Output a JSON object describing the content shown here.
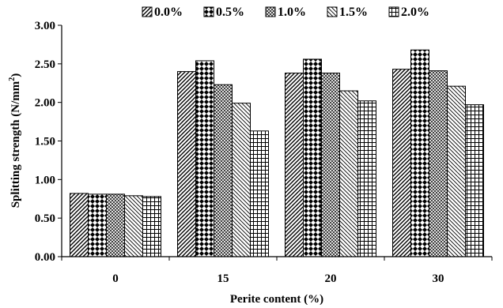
{
  "chart_data": {
    "type": "bar",
    "xlabel": "Perite content (%)",
    "ylabel_main": "Splitting strength (N/mm",
    "ylabel_sup": "2",
    "ylabel_close": ")",
    "ylim": [
      0,
      3
    ],
    "yticks": [
      "0.00",
      "0.50",
      "1.00",
      "1.50",
      "2.00",
      "2.50",
      "3.00"
    ],
    "categories": [
      "0",
      "15",
      "20",
      "30"
    ],
    "legend_position": "top",
    "series": [
      {
        "name": "0.0%",
        "pattern": "diag-right",
        "values": [
          0.82,
          2.4,
          2.38,
          2.43
        ]
      },
      {
        "name": "0.5%",
        "pattern": "diamond",
        "values": [
          0.81,
          2.54,
          2.56,
          2.68
        ]
      },
      {
        "name": "1.0%",
        "pattern": "cross-fine",
        "values": [
          0.81,
          2.23,
          2.38,
          2.41
        ]
      },
      {
        "name": "1.5%",
        "pattern": "diag-left",
        "values": [
          0.79,
          1.99,
          2.15,
          2.21
        ]
      },
      {
        "name": "2.0%",
        "pattern": "grid",
        "values": [
          0.78,
          1.63,
          2.02,
          1.97
        ]
      }
    ]
  }
}
